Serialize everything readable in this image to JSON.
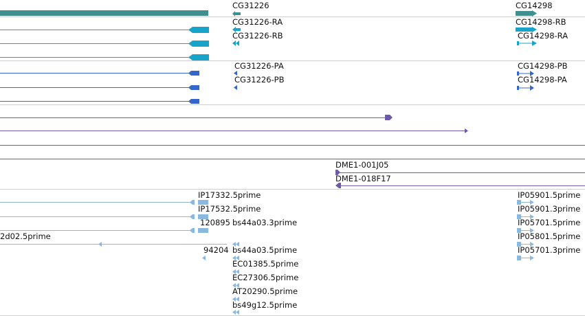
{
  "colors": {
    "gene": "#3f8f8f",
    "transcript": "#1aa3c8",
    "protein": "#3566c9",
    "clone": "#6e58a8",
    "est": "#8ab8e0"
  },
  "gene_track": {
    "labels": [
      "CG31226",
      "CG14298"
    ]
  },
  "transcript_track": {
    "labels": [
      "CG31226-RA",
      "CG14298-RB",
      "CG31226-RB",
      "CG14298-RA"
    ]
  },
  "protein_track": {
    "labels": [
      "CG31226-PA",
      "CG14298-PB",
      "CG31226-PB",
      "CG14298-PA"
    ]
  },
  "clone_track": {
    "labels": [
      "DME1-001J05",
      "DME1-018F17"
    ]
  },
  "est_track": {
    "labels": [
      "IP17332.5prime",
      "IP05901.5prime",
      "IP17532.5prime",
      "IP05901.3prime",
      "120895",
      "bs44a03.3prime",
      "IP05701.5prime",
      "2d02.5prime",
      "IP05801.5prime",
      "94204",
      "bs44a03.5prime",
      "IP05701.3prime",
      "EC01385.5prime",
      "EC27306.5prime",
      "AT20290.5prime",
      "bs49g12.5prime"
    ]
  }
}
